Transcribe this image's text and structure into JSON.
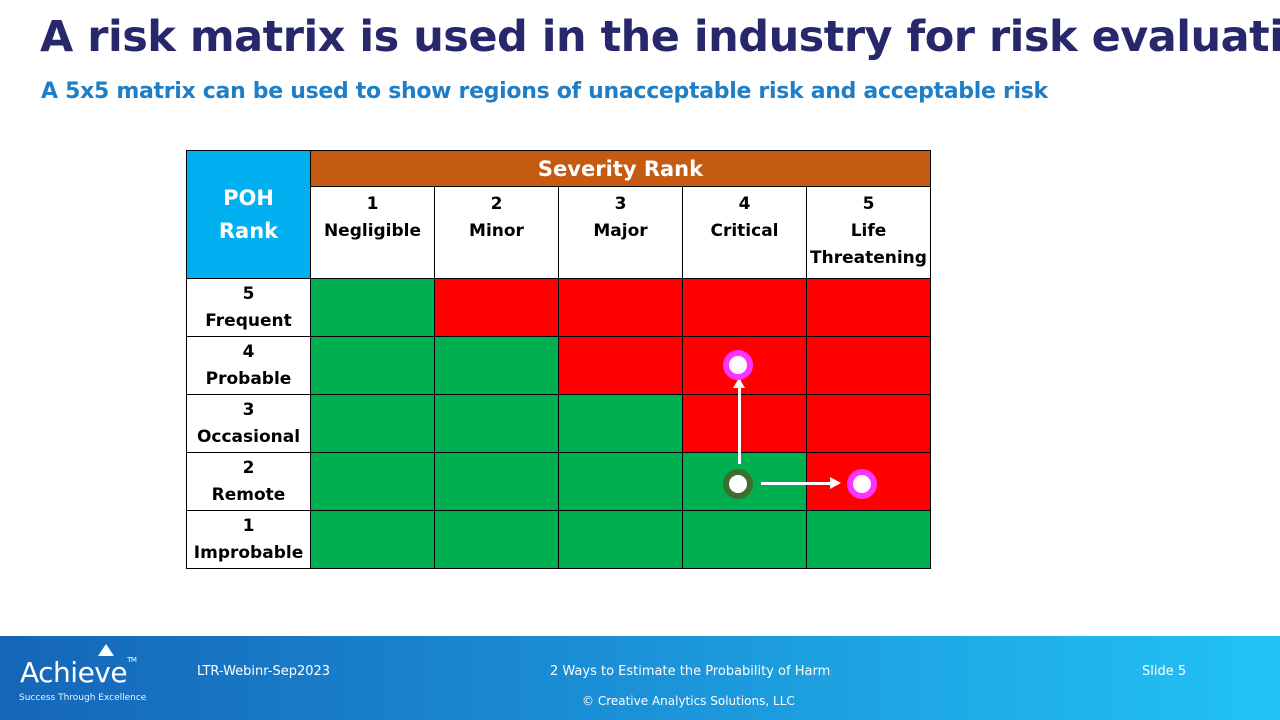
{
  "title": "A risk matrix is used in the industry for risk evaluation",
  "subtitle": "A 5x5 matrix can be used to show regions of unacceptable risk and acceptable risk",
  "matrix": {
    "poh_header": [
      "POH",
      "Rank"
    ],
    "severity_header": "Severity Rank",
    "columns": [
      {
        "rank": "1",
        "label": [
          "Negligible"
        ]
      },
      {
        "rank": "2",
        "label": [
          "Minor"
        ]
      },
      {
        "rank": "3",
        "label": [
          "Major"
        ]
      },
      {
        "rank": "4",
        "label": [
          "Critical"
        ]
      },
      {
        "rank": "5",
        "label": [
          "Life",
          "Threatening"
        ]
      }
    ],
    "rows": [
      {
        "rank": "5",
        "label": "Frequent",
        "cells": [
          "green",
          "red",
          "red",
          "red",
          "red"
        ]
      },
      {
        "rank": "4",
        "label": "Probable",
        "cells": [
          "green",
          "green",
          "red",
          "red",
          "red"
        ]
      },
      {
        "rank": "3",
        "label": "Occasional",
        "cells": [
          "green",
          "green",
          "green",
          "red",
          "red"
        ]
      },
      {
        "rank": "2",
        "label": "Remote",
        "cells": [
          "green",
          "green",
          "green",
          "green",
          "red"
        ]
      },
      {
        "rank": "1",
        "label": "Improbable",
        "cells": [
          "green",
          "green",
          "green",
          "green",
          "green"
        ]
      }
    ],
    "colors": {
      "green": "#00b050",
      "red": "#ff0000",
      "poh": "#00b0f0",
      "severity": "#c55a11"
    }
  },
  "footer": {
    "logo": "Achieve",
    "logo_tm": "TM",
    "tagline": "Success Through Excellence",
    "code": "LTR-Webinr-Sep2023",
    "topic": "2 Ways to Estimate the Probability of Harm",
    "slide": "Slide 5",
    "copyright": "© Creative Analytics Solutions, LLC"
  }
}
